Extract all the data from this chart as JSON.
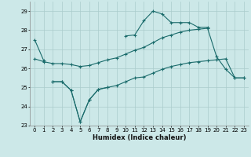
{
  "xlabel": "Humidex (Indice chaleur)",
  "background_color": "#cce8e8",
  "grid_color": "#aacccc",
  "line_color": "#1a6b6b",
  "series": [
    {
      "x": [
        0,
        1
      ],
      "y": [
        27.5,
        26.4
      ]
    },
    {
      "x": [
        2,
        3,
        4,
        5,
        6,
        7,
        8
      ],
      "y": [
        25.3,
        25.3,
        24.85,
        23.2,
        24.35,
        24.9,
        25.0
      ]
    },
    {
      "x": [
        10,
        11,
        12,
        13,
        14,
        15,
        16,
        17,
        18,
        19
      ],
      "y": [
        27.7,
        27.75,
        28.5,
        29.0,
        28.85,
        28.4,
        28.4,
        28.4,
        28.15,
        28.15
      ]
    },
    {
      "x": [
        0,
        1,
        2,
        3,
        4,
        5,
        6,
        7,
        8,
        9,
        10,
        11,
        12,
        13,
        14,
        15,
        16,
        17,
        18,
        19,
        20,
        21,
        22,
        23
      ],
      "y": [
        26.5,
        26.35,
        26.25,
        26.25,
        26.2,
        26.1,
        26.15,
        26.3,
        26.45,
        26.55,
        26.75,
        26.95,
        27.1,
        27.35,
        27.6,
        27.75,
        27.9,
        28.0,
        28.05,
        28.1,
        26.6,
        25.95,
        25.5,
        25.5
      ]
    },
    {
      "x": [
        2,
        3,
        4,
        5,
        6,
        7,
        8,
        9,
        10,
        11,
        12,
        13,
        14,
        15,
        16,
        17,
        18,
        19,
        20,
        21,
        22,
        23
      ],
      "y": [
        25.3,
        25.3,
        24.85,
        23.2,
        24.35,
        24.9,
        25.0,
        25.1,
        25.3,
        25.5,
        25.55,
        25.75,
        25.95,
        26.1,
        26.2,
        26.3,
        26.35,
        26.4,
        26.45,
        26.5,
        25.5,
        25.5
      ]
    }
  ],
  "ylim": [
    23.0,
    29.5
  ],
  "yticks": [
    23,
    24,
    25,
    26,
    27,
    28,
    29
  ],
  "xlim": [
    -0.5,
    23.5
  ],
  "xticks": [
    0,
    1,
    2,
    3,
    4,
    5,
    6,
    7,
    8,
    9,
    10,
    11,
    12,
    13,
    14,
    15,
    16,
    17,
    18,
    19,
    20,
    21,
    22,
    23
  ],
  "xlabel_fontsize": 6.0,
  "tick_fontsize": 5.0,
  "linewidth": 0.8,
  "markersize": 3.0
}
